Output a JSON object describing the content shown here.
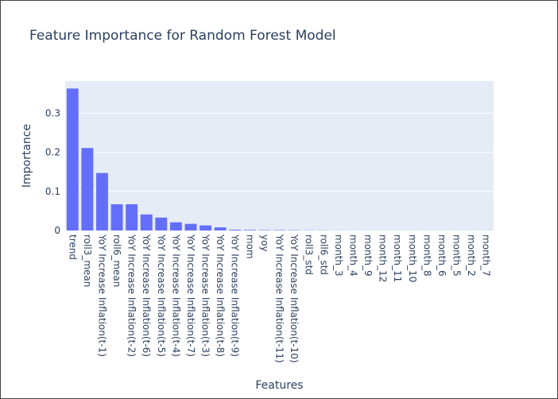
{
  "chart_data": {
    "type": "bar",
    "title": "Feature Importance for Random Forest Model",
    "xlabel": "Features",
    "ylabel": "Importance",
    "categories": [
      "trend",
      "roll3_mean",
      "YoY Increase Inflation(t-1)",
      "roll6_mean",
      "YoY Increase Inflation(t-2)",
      "YoY Increase Inflation(t-6)",
      "YoY Increase Inflation(t-5)",
      "YoY Increase Inflation(t-4)",
      "YoY Increase Inflation(t-7)",
      "YoY Increase Inflation(t-3)",
      "YoY Increase Inflation(t-8)",
      "YoY Increase Inflation(t-9)",
      "mom",
      "yoy",
      "YoY Increase Inflation(t-11)",
      "YoY Increase Inflation(t-10)",
      "roll3_std",
      "roll6_std",
      "month_3",
      "month_4",
      "month_9",
      "month_12",
      "month_11",
      "month_10",
      "month_8",
      "month_6",
      "month_5",
      "month_2",
      "month_7"
    ],
    "values": [
      0.363,
      0.211,
      0.147,
      0.067,
      0.067,
      0.041,
      0.033,
      0.021,
      0.017,
      0.013,
      0.008,
      0.002,
      0.0015,
      0.001,
      0.001,
      0.0008,
      0.0005,
      0.0004,
      0.0002,
      0.0002,
      0.0001,
      0.0001,
      0.0001,
      0.0001,
      0.0001,
      0.0001,
      0.0001,
      0.0001,
      0.0001
    ],
    "yticks": [
      "0",
      "0.1",
      "0.2",
      "0.3"
    ],
    "ylim": [
      0,
      0.382
    ],
    "grid": true,
    "colors": {
      "bar": "#636efa",
      "plot_bg": "#e5ecf6",
      "grid": "#ffffff",
      "text": "#2a3f5f"
    }
  }
}
